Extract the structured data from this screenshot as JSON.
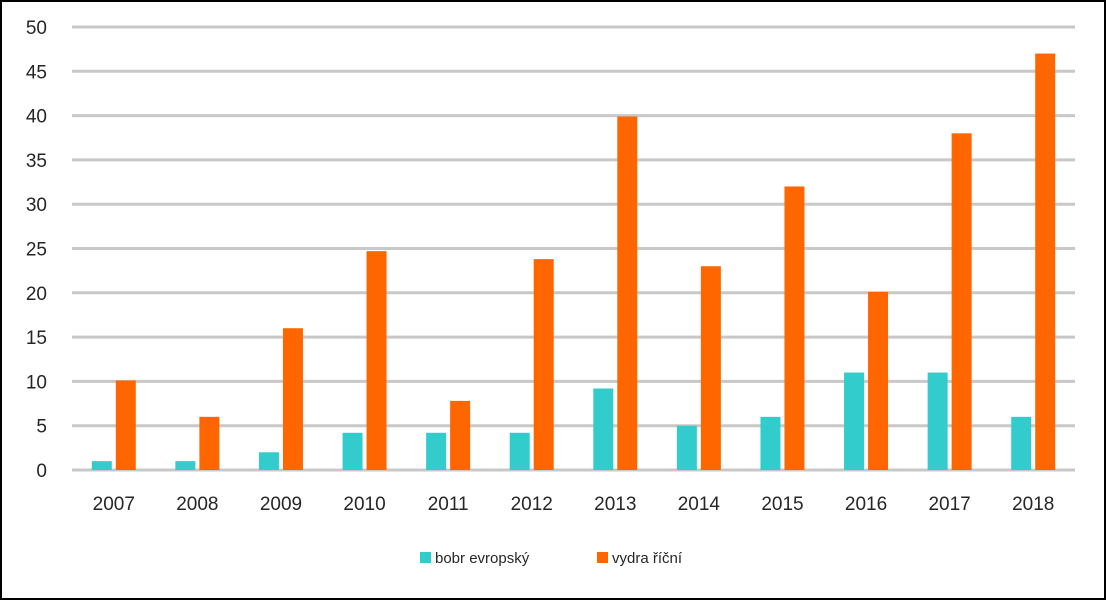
{
  "chart_data": {
    "type": "bar",
    "categories": [
      "2007",
      "2008",
      "2009",
      "2010",
      "2011",
      "2012",
      "2013",
      "2014",
      "2015",
      "2016",
      "2017",
      "2018"
    ],
    "series": [
      {
        "name": "bobr evropský",
        "color": "#33CCCC",
        "values": [
          1,
          1,
          2,
          4.2,
          4.2,
          4.2,
          9.2,
          5,
          6,
          11,
          11,
          6
        ]
      },
      {
        "name": "vydra říční",
        "color": "#FF6600",
        "values": [
          10.1,
          6,
          16,
          24.7,
          7.8,
          23.8,
          39.9,
          23,
          32,
          20.1,
          38,
          47
        ]
      }
    ],
    "ylim": [
      0,
      50
    ],
    "yticks": [
      0,
      5,
      10,
      15,
      20,
      25,
      30,
      35,
      40,
      45,
      50
    ],
    "grid": true,
    "legend_position": "bottom",
    "title": "",
    "xlabel": "",
    "ylabel": ""
  }
}
